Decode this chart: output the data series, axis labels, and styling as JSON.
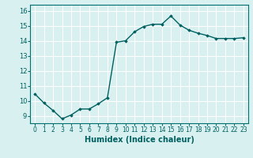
{
  "x": [
    0,
    1,
    2,
    3,
    4,
    5,
    6,
    7,
    8,
    9,
    10,
    11,
    12,
    13,
    14,
    15,
    16,
    17,
    18,
    19,
    20,
    21,
    22,
    23
  ],
  "y": [
    10.45,
    9.85,
    9.35,
    8.8,
    9.05,
    9.45,
    9.45,
    9.8,
    10.2,
    13.9,
    14.0,
    14.6,
    14.95,
    15.1,
    15.1,
    15.65,
    15.05,
    14.7,
    14.5,
    14.35,
    14.15,
    14.15,
    14.15,
    14.2
  ],
  "line_color": "#006060",
  "marker": "D",
  "marker_size": 1.8,
  "bg_color": "#d8f0f0",
  "grid_color": "#ffffff",
  "xlabel": "Humidex (Indice chaleur)",
  "xlabel_fontsize": 7,
  "yticks": [
    9,
    10,
    11,
    12,
    13,
    14,
    15,
    16
  ],
  "xticks": [
    0,
    1,
    2,
    3,
    4,
    5,
    6,
    7,
    8,
    9,
    10,
    11,
    12,
    13,
    14,
    15,
    16,
    17,
    18,
    19,
    20,
    21,
    22,
    23
  ],
  "ylim": [
    8.5,
    16.4
  ],
  "xlim": [
    -0.5,
    23.5
  ],
  "ytick_fontsize": 6,
  "xtick_fontsize": 5.5,
  "line_width": 1.0,
  "grid_linewidth": 0.8,
  "spine_color": "#007070"
}
